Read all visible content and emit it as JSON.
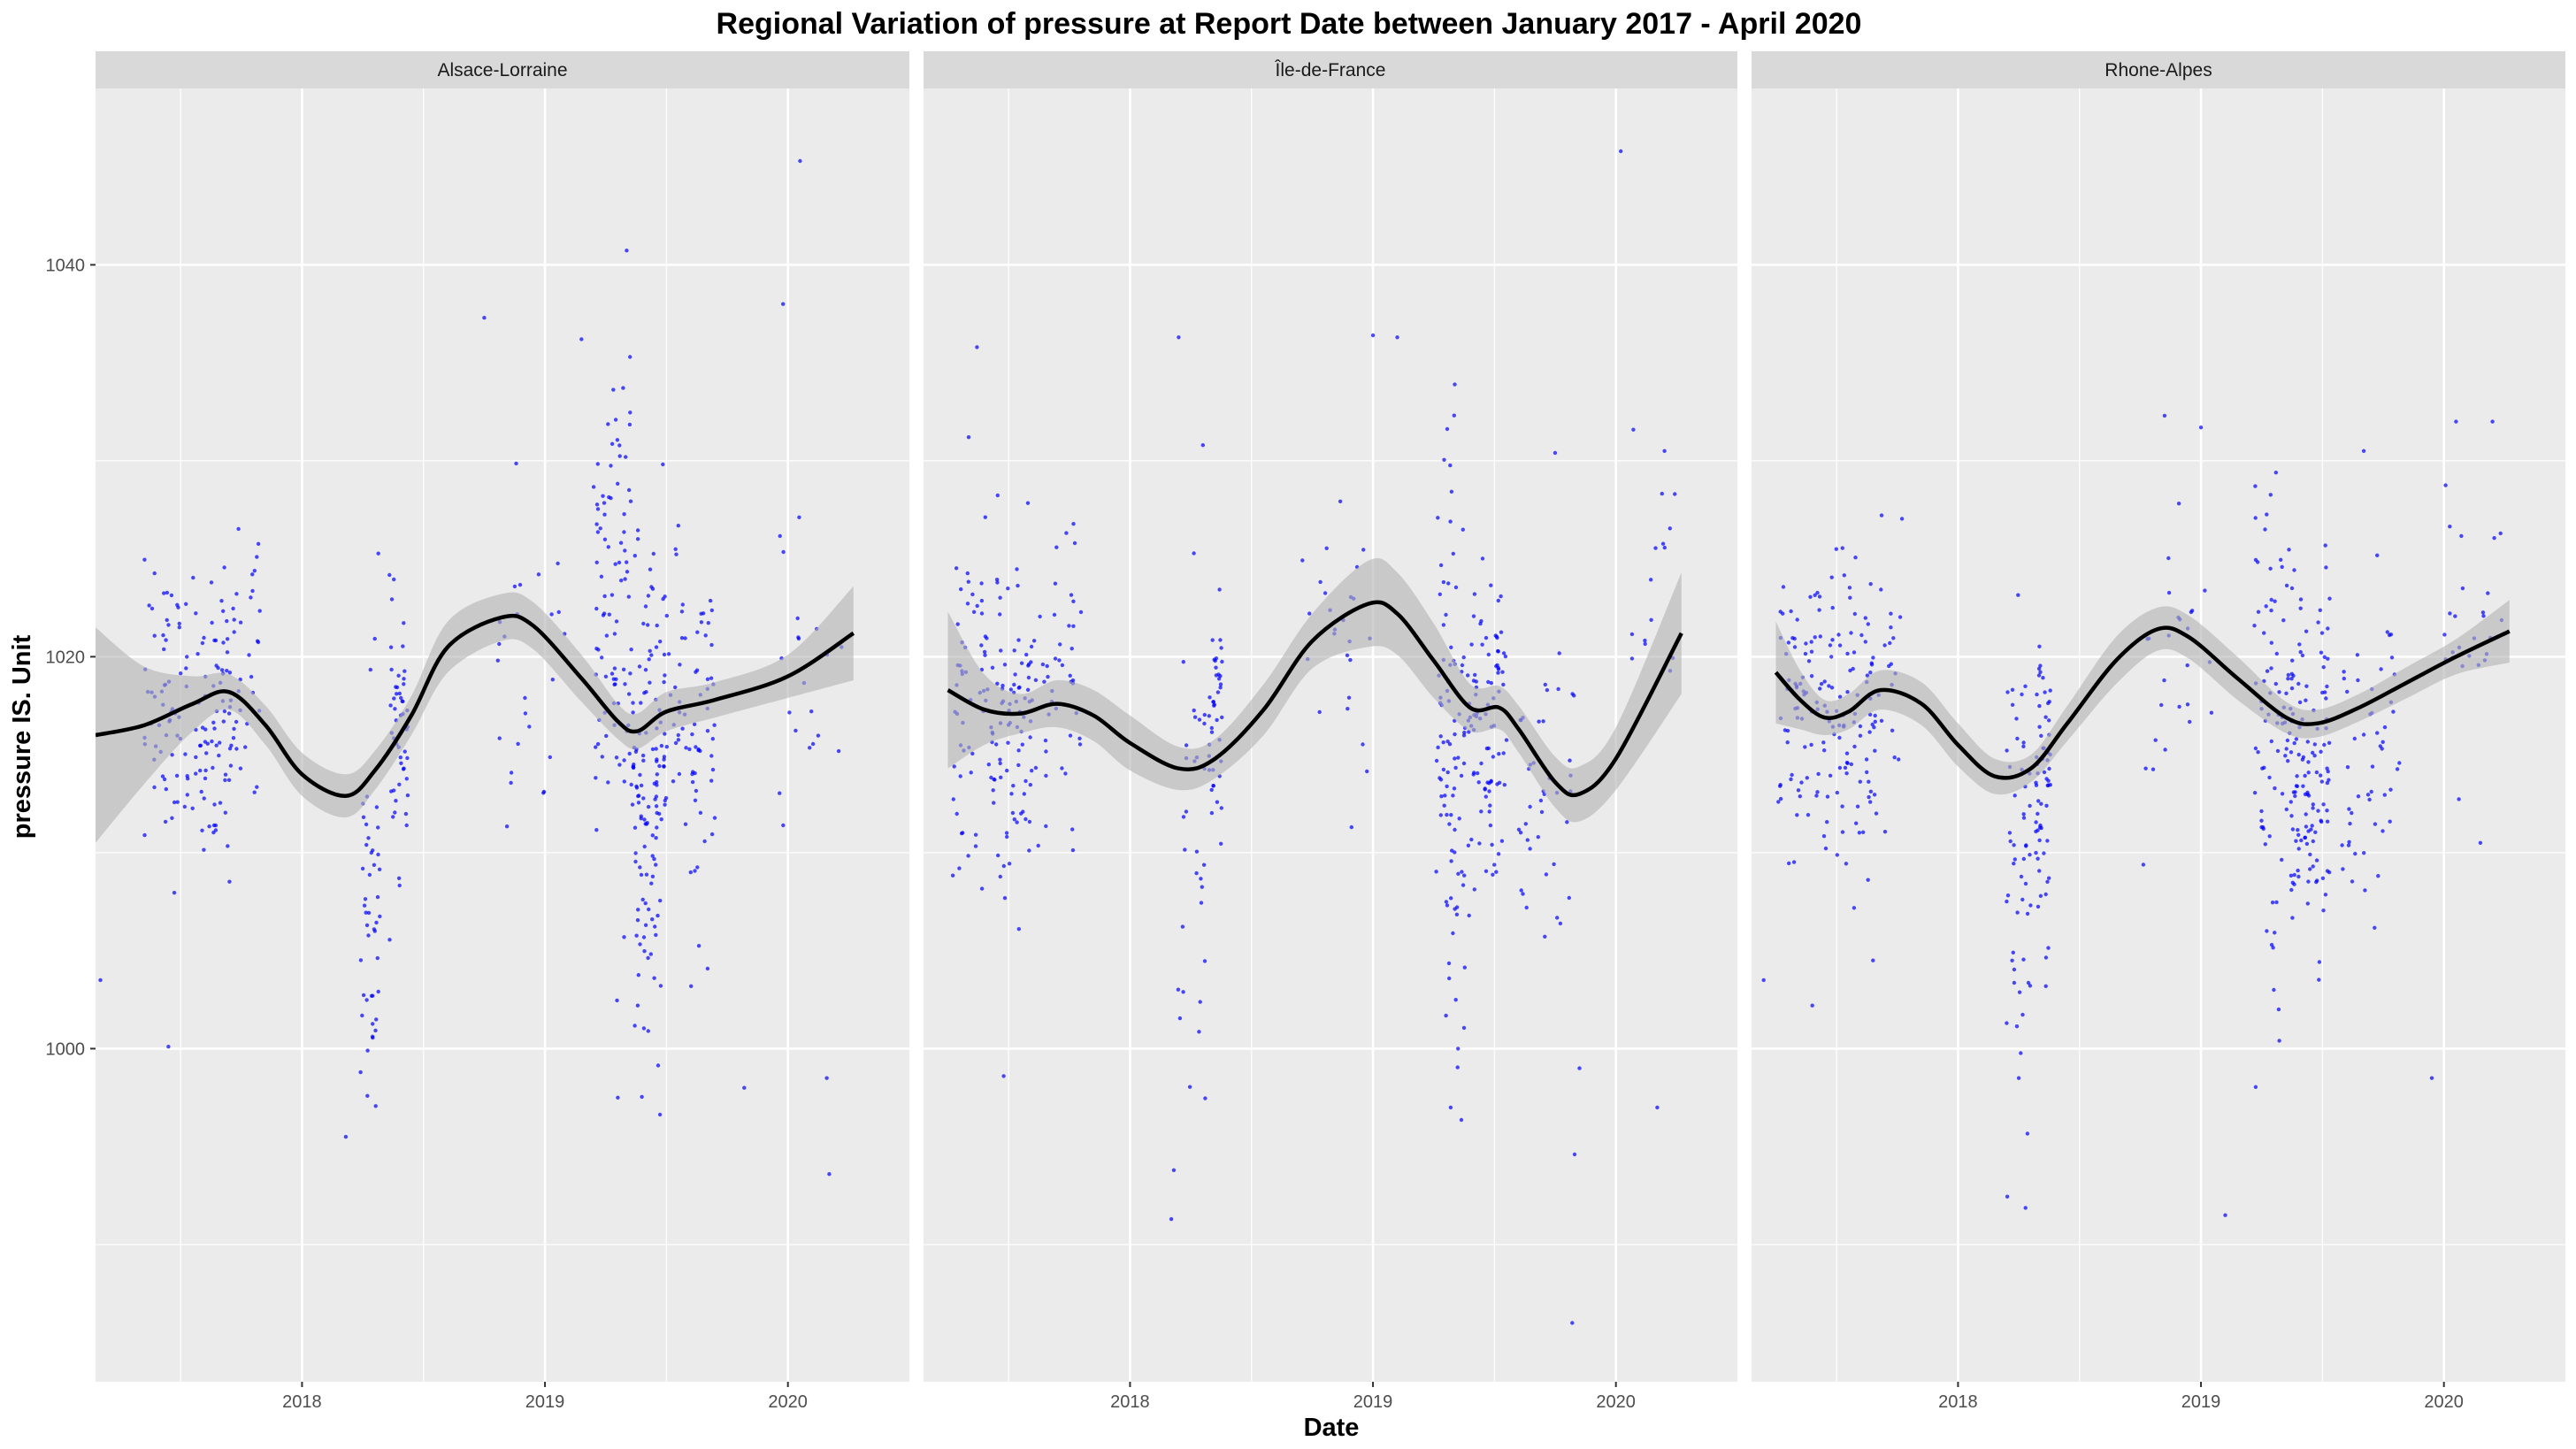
{
  "chart_data": {
    "type": "scatter",
    "title": "Regional Variation of  pressure  at Report Date between January 2017 - April 2020",
    "xlabel": "Date",
    "ylabel": "pressure  IS. Unit",
    "x_tick_labels": [
      "2018",
      "2019",
      "2020"
    ],
    "x_ticks": [
      2018,
      2019,
      2020
    ],
    "x_minor_ticks": [
      2017.5,
      2018.5,
      2019.5
    ],
    "xlim": [
      2017.15,
      2020.5
    ],
    "y_tick_labels": [
      "1000",
      "1020",
      "1040"
    ],
    "y_ticks": [
      1000,
      1020,
      1040
    ],
    "y_minor_ticks": [
      990,
      1010,
      1030
    ],
    "ylim": [
      983,
      1049
    ],
    "point_color": "#0000ff",
    "smooth_color": "#000000",
    "band_color": "#b3b3b3",
    "panel_background": "#ebebeb",
    "strip_background": "#d9d9d9",
    "grid": true,
    "panels": [
      {
        "name": "Alsace-Lorraine",
        "point_clusters": [
          {
            "x": 2017.53,
            "spread_x": 0.18,
            "center_y": 1017,
            "spread_y": 5,
            "n": 130
          },
          {
            "x": 2017.75,
            "spread_x": 0.08,
            "center_y": 1020,
            "spread_y": 4,
            "n": 40
          },
          {
            "x": 2018.28,
            "spread_x": 0.04,
            "center_y": 1008,
            "spread_y": 8,
            "n": 45
          },
          {
            "x": 2018.4,
            "spread_x": 0.04,
            "center_y": 1016,
            "spread_y": 4,
            "n": 50
          },
          {
            "x": 2018.95,
            "spread_x": 0.15,
            "center_y": 1018,
            "spread_y": 7,
            "n": 25
          },
          {
            "x": 2019.28,
            "spread_x": 0.08,
            "center_y": 1022,
            "spread_y": 9,
            "n": 90
          },
          {
            "x": 2019.42,
            "spread_x": 0.06,
            "center_y": 1012,
            "spread_y": 8,
            "n": 110
          },
          {
            "x": 2019.58,
            "spread_x": 0.12,
            "center_y": 1016,
            "spread_y": 6,
            "n": 90
          },
          {
            "x": 2020.1,
            "spread_x": 0.14,
            "center_y": 1020,
            "spread_y": 6,
            "n": 20
          }
        ],
        "outliers": [
          [
            2017.17,
            1003.5
          ],
          [
            2017.45,
            1000.1
          ],
          [
            2018.18,
            995.5
          ],
          [
            2018.27,
            999.9
          ],
          [
            2019.3,
            997.5
          ],
          [
            2019.82,
            998.0
          ],
          [
            2020.17,
            993.6
          ],
          [
            2020.05,
            1045.3
          ],
          [
            2019.98,
            1038.0
          ],
          [
            2018.75,
            1037.3
          ],
          [
            2019.15,
            1036.2
          ],
          [
            2019.35,
            1035.3
          ],
          [
            2020.16,
            998.5
          ]
        ],
        "smooth": [
          [
            2017.15,
            1016.0
          ],
          [
            2017.35,
            1016.5
          ],
          [
            2017.55,
            1017.6
          ],
          [
            2017.7,
            1018.2
          ],
          [
            2017.85,
            1016.5
          ],
          [
            2018.0,
            1014.0
          ],
          [
            2018.18,
            1012.9
          ],
          [
            2018.3,
            1014.2
          ],
          [
            2018.45,
            1017.0
          ],
          [
            2018.6,
            1020.5
          ],
          [
            2018.82,
            1022.0
          ],
          [
            2018.95,
            1021.6
          ],
          [
            2019.15,
            1018.9
          ],
          [
            2019.3,
            1016.7
          ],
          [
            2019.38,
            1016.2
          ],
          [
            2019.5,
            1017.2
          ],
          [
            2019.7,
            1017.8
          ],
          [
            2020.0,
            1019.0
          ],
          [
            2020.27,
            1021.2
          ]
        ],
        "band_halfwidth": [
          5.5,
          3.0,
          1.4,
          0.9,
          1.0,
          1.1,
          1.1,
          1.0,
          1.0,
          1.3,
          1.2,
          1.2,
          1.2,
          0.9,
          0.9,
          1.0,
          0.9,
          1.1,
          2.4
        ]
      },
      {
        "name": "Île-de-France",
        "point_clusters": [
          {
            "x": 2017.45,
            "spread_x": 0.18,
            "center_y": 1017,
            "spread_y": 6,
            "n": 150
          },
          {
            "x": 2017.72,
            "spread_x": 0.08,
            "center_y": 1018,
            "spread_y": 5,
            "n": 40
          },
          {
            "x": 2018.25,
            "spread_x": 0.06,
            "center_y": 1010,
            "spread_y": 8,
            "n": 30
          },
          {
            "x": 2018.35,
            "spread_x": 0.03,
            "center_y": 1017,
            "spread_y": 5,
            "n": 40
          },
          {
            "x": 2018.85,
            "spread_x": 0.15,
            "center_y": 1022,
            "spread_y": 5,
            "n": 25
          },
          {
            "x": 2019.32,
            "spread_x": 0.06,
            "center_y": 1016,
            "spread_y": 10,
            "n": 90
          },
          {
            "x": 2019.47,
            "spread_x": 0.08,
            "center_y": 1015,
            "spread_y": 6,
            "n": 90
          },
          {
            "x": 2019.72,
            "spread_x": 0.12,
            "center_y": 1013,
            "spread_y": 6,
            "n": 40
          },
          {
            "x": 2020.15,
            "spread_x": 0.1,
            "center_y": 1022,
            "spread_y": 6,
            "n": 15
          }
        ],
        "outliers": [
          [
            2017.37,
            1035.8
          ],
          [
            2017.48,
            998.6
          ],
          [
            2018.2,
            1036.3
          ],
          [
            2018.3,
            1030.8
          ],
          [
            2018.18,
            993.8
          ],
          [
            2018.17,
            991.3
          ],
          [
            2019.0,
            1036.4
          ],
          [
            2019.1,
            1036.3
          ],
          [
            2019.32,
            997.0
          ],
          [
            2019.35,
            1000.0
          ],
          [
            2019.85,
            999.0
          ],
          [
            2019.83,
            994.6
          ],
          [
            2019.82,
            986.0
          ],
          [
            2020.02,
            1045.8
          ],
          [
            2020.17,
            997.0
          ],
          [
            2020.2,
            1030.5
          ],
          [
            2019.75,
            1030.4
          ]
        ],
        "smooth": [
          [
            2017.25,
            1018.3
          ],
          [
            2017.4,
            1017.3
          ],
          [
            2017.55,
            1017.1
          ],
          [
            2017.7,
            1017.6
          ],
          [
            2017.85,
            1017.0
          ],
          [
            2018.0,
            1015.6
          ],
          [
            2018.2,
            1014.3
          ],
          [
            2018.35,
            1014.8
          ],
          [
            2018.55,
            1017.3
          ],
          [
            2018.75,
            1020.8
          ],
          [
            2018.98,
            1022.7
          ],
          [
            2019.1,
            1022.2
          ],
          [
            2019.25,
            1019.8
          ],
          [
            2019.4,
            1017.4
          ],
          [
            2019.52,
            1017.4
          ],
          [
            2019.6,
            1016.3
          ],
          [
            2019.75,
            1013.6
          ],
          [
            2019.85,
            1013.0
          ],
          [
            2020.0,
            1014.8
          ],
          [
            2020.27,
            1021.2
          ]
        ],
        "band_halfwidth": [
          4.0,
          1.8,
          1.0,
          1.2,
          1.3,
          1.4,
          1.1,
          1.0,
          1.3,
          1.4,
          2.2,
          2.1,
          1.9,
          1.2,
          1.1,
          1.2,
          1.3,
          1.4,
          1.6,
          3.1
        ]
      },
      {
        "name": "Rhone-Alpes",
        "point_clusters": [
          {
            "x": 2017.45,
            "spread_x": 0.2,
            "center_y": 1017,
            "spread_y": 5,
            "n": 150
          },
          {
            "x": 2017.7,
            "spread_x": 0.07,
            "center_y": 1019,
            "spread_y": 5,
            "n": 30
          },
          {
            "x": 2018.25,
            "spread_x": 0.05,
            "center_y": 1008,
            "spread_y": 9,
            "n": 50
          },
          {
            "x": 2018.35,
            "spread_x": 0.03,
            "center_y": 1013,
            "spread_y": 5,
            "n": 60
          },
          {
            "x": 2018.9,
            "spread_x": 0.15,
            "center_y": 1020,
            "spread_y": 5,
            "n": 25
          },
          {
            "x": 2019.3,
            "spread_x": 0.08,
            "center_y": 1018,
            "spread_y": 8,
            "n": 80
          },
          {
            "x": 2019.45,
            "spread_x": 0.08,
            "center_y": 1014,
            "spread_y": 6,
            "n": 120
          },
          {
            "x": 2019.7,
            "spread_x": 0.12,
            "center_y": 1015,
            "spread_y": 5,
            "n": 50
          },
          {
            "x": 2020.12,
            "spread_x": 0.12,
            "center_y": 1022,
            "spread_y": 5,
            "n": 25
          }
        ],
        "outliers": [
          [
            2017.2,
            1003.5
          ],
          [
            2017.4,
            1002.2
          ],
          [
            2017.65,
            1004.5
          ],
          [
            2018.25,
            998.5
          ],
          [
            2018.2,
            1001.3
          ],
          [
            2019.1,
            991.5
          ],
          [
            2019.3,
            1003.0
          ],
          [
            2019.32,
            1002.0
          ],
          [
            2019.95,
            998.5
          ],
          [
            2020.15,
            1010.5
          ],
          [
            2020.05,
            1032.0
          ],
          [
            2020.2,
            1032.0
          ],
          [
            2019.0,
            1031.7
          ],
          [
            2018.85,
            1032.3
          ],
          [
            2019.67,
            1030.5
          ]
        ],
        "smooth": [
          [
            2017.25,
            1019.2
          ],
          [
            2017.35,
            1017.8
          ],
          [
            2017.45,
            1016.9
          ],
          [
            2017.55,
            1017.2
          ],
          [
            2017.68,
            1018.3
          ],
          [
            2017.85,
            1017.6
          ],
          [
            2018.0,
            1015.5
          ],
          [
            2018.15,
            1013.9
          ],
          [
            2018.3,
            1014.3
          ],
          [
            2018.45,
            1016.6
          ],
          [
            2018.65,
            1019.8
          ],
          [
            2018.82,
            1021.4
          ],
          [
            2018.95,
            1021.0
          ],
          [
            2019.15,
            1018.9
          ],
          [
            2019.35,
            1016.9
          ],
          [
            2019.48,
            1016.6
          ],
          [
            2019.65,
            1017.4
          ],
          [
            2019.85,
            1018.7
          ],
          [
            2020.05,
            1020.0
          ],
          [
            2020.27,
            1021.3
          ]
        ],
        "band_halfwidth": [
          2.6,
          1.5,
          0.9,
          0.9,
          1.0,
          1.1,
          1.1,
          0.9,
          0.7,
          0.9,
          1.2,
          1.1,
          1.1,
          1.1,
          0.8,
          0.7,
          0.7,
          0.8,
          0.9,
          1.6
        ]
      }
    ]
  }
}
